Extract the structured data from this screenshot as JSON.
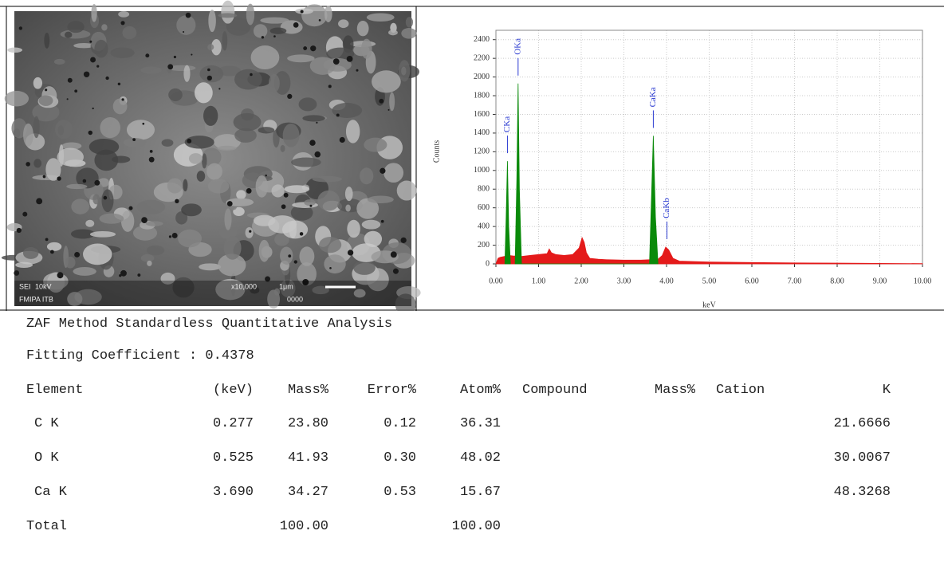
{
  "sem_image": {
    "labels": [
      "SEI",
      "10kV",
      "x10,000",
      "1μm",
      "0000",
      "FMIPA ITB"
    ]
  },
  "chart_data": {
    "type": "area",
    "ylabel": "Counts",
    "xlabel": "keV",
    "xlim": [
      0,
      10
    ],
    "ylim": [
      0,
      2500
    ],
    "xticks": [
      {
        "value": 0,
        "label": "0.00"
      },
      {
        "value": 1,
        "label": "1.00"
      },
      {
        "value": 2,
        "label": "2.00"
      },
      {
        "value": 3,
        "label": "3.00"
      },
      {
        "value": 4,
        "label": "4.00"
      },
      {
        "value": 5,
        "label": "5.00"
      },
      {
        "value": 6,
        "label": "6.00"
      },
      {
        "value": 7,
        "label": "7.00"
      },
      {
        "value": 8,
        "label": "8.00"
      },
      {
        "value": 9,
        "label": "9.00"
      },
      {
        "value": 10,
        "label": "10.00"
      }
    ],
    "yticks": [
      0,
      200,
      400,
      600,
      800,
      1000,
      1200,
      1400,
      1600,
      1800,
      2000,
      2200,
      2400
    ],
    "grid": true,
    "series": [
      {
        "color": "#e41a1a",
        "x": [
          0,
          0.05,
          0.1,
          0.2,
          0.3,
          0.4,
          0.6,
          0.8,
          1.0,
          1.2,
          1.25,
          1.3,
          1.4,
          1.6,
          1.8,
          1.95,
          2.02,
          2.07,
          2.12,
          2.2,
          2.4,
          2.6,
          3.0,
          3.4,
          3.6,
          3.8,
          3.9,
          3.98,
          4.05,
          4.15,
          4.3,
          4.6,
          5.0,
          6.0,
          7.0,
          8.0,
          9.0,
          10.0
        ],
        "values": [
          0,
          60,
          70,
          80,
          90,
          85,
          80,
          90,
          100,
          110,
          160,
          120,
          100,
          90,
          100,
          170,
          280,
          230,
          120,
          60,
          50,
          45,
          40,
          40,
          45,
          50,
          90,
          180,
          150,
          60,
          30,
          25,
          20,
          15,
          10,
          8,
          5,
          3
        ]
      },
      {
        "color": "#0a8a0a",
        "x": [
          0.21,
          0.24,
          0.27,
          0.3,
          0.34,
          0.36,
          0.45,
          0.49,
          0.52,
          0.55,
          0.6,
          3.6,
          3.64,
          3.69,
          3.74,
          3.8
        ],
        "values": [
          0,
          500,
          1100,
          400,
          0,
          null,
          0,
          900,
          1930,
          800,
          0,
          0,
          600,
          1370,
          500,
          0
        ]
      }
    ],
    "annotations": [
      {
        "text": "CKa",
        "x": 0.27
      },
      {
        "text": "OKa",
        "x": 0.52
      },
      {
        "text": "CaKa",
        "x": 3.69
      },
      {
        "text": "CaKb",
        "x": 4.01
      }
    ]
  },
  "table": {
    "title": "ZAF Method Standardless Quantitative Analysis",
    "fitting": "Fitting Coefficient : 0.4378",
    "header": [
      "Element",
      "(keV)",
      "Mass%",
      "Error%",
      "Atom%",
      "Compound",
      "Mass%",
      "Cation",
      "K"
    ],
    "rows": [
      [
        "C K",
        "0.277",
        "23.80",
        "0.12",
        "36.31",
        "",
        "",
        "",
        "21.6666"
      ],
      [
        "O K",
        "0.525",
        "41.93",
        "0.30",
        "48.02",
        "",
        "",
        "",
        "30.0067"
      ],
      [
        "Ca K",
        "3.690",
        "34.27",
        "0.53",
        "15.67",
        "",
        "",
        "",
        "48.3268"
      ],
      [
        "Total",
        "",
        "100.00",
        "",
        "100.00",
        "",
        "",
        "",
        ""
      ]
    ]
  }
}
